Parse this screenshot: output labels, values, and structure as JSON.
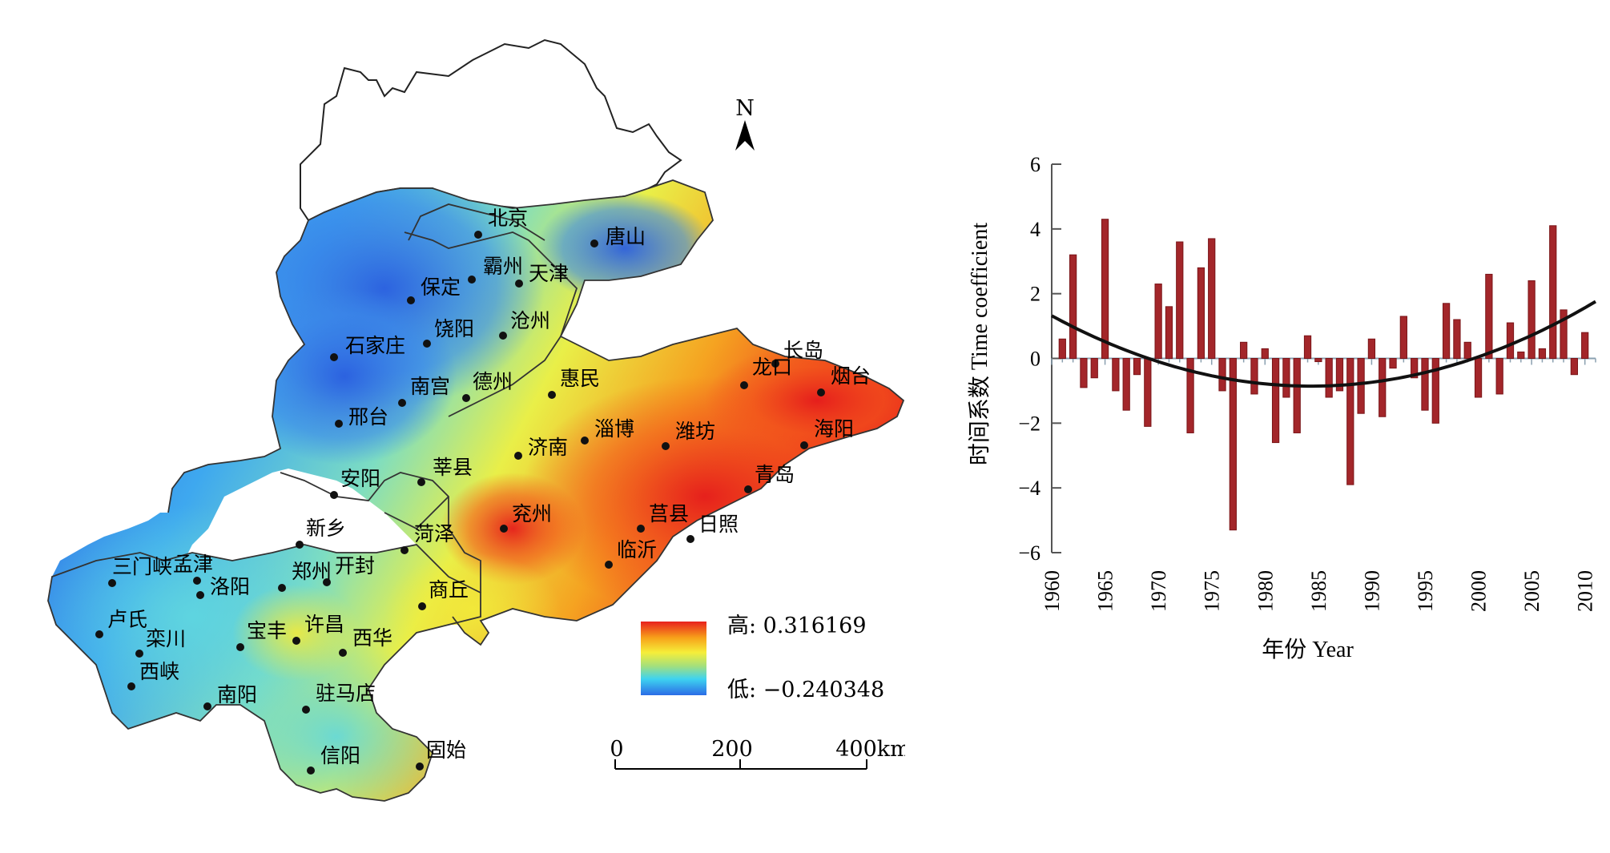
{
  "map": {
    "north_label": "N",
    "legend": {
      "high_label": "高: 0.316169",
      "low_label": "低: −0.240348",
      "colors": [
        "#e8201c",
        "#f7a11a",
        "#f6ee3a",
        "#a6e07a",
        "#3ed3f0",
        "#2b6ce6"
      ]
    },
    "scale_bar": {
      "ticks": [
        "0",
        "200",
        "400km"
      ]
    },
    "cities": [
      {
        "name": "北京",
        "value": -0.22
      },
      {
        "name": "唐山",
        "value": -0.18
      },
      {
        "name": "霸州",
        "value": -0.2
      },
      {
        "name": "天津",
        "value": -0.15
      },
      {
        "name": "保定",
        "value": -0.21
      },
      {
        "name": "饶阳",
        "value": -0.18
      },
      {
        "name": "沧州",
        "value": -0.12
      },
      {
        "name": "石家庄",
        "value": -0.24
      },
      {
        "name": "南宫",
        "value": -0.1
      },
      {
        "name": "德州",
        "value": -0.05
      },
      {
        "name": "惠民",
        "value": 0.05
      },
      {
        "name": "邢台",
        "value": -0.17
      },
      {
        "name": "济南",
        "value": 0.1
      },
      {
        "name": "淄博",
        "value": 0.17
      },
      {
        "name": "潍坊",
        "value": 0.25
      },
      {
        "name": "长岛",
        "value": 0.2
      },
      {
        "name": "龙口",
        "value": 0.22
      },
      {
        "name": "烟台",
        "value": 0.25
      },
      {
        "name": "海阳",
        "value": 0.3
      },
      {
        "name": "青岛",
        "value": 0.28
      },
      {
        "name": "莘县",
        "value": -0.02
      },
      {
        "name": "安阳",
        "value": -0.08
      },
      {
        "name": "兖州",
        "value": 0.22
      },
      {
        "name": "莒县",
        "value": 0.3
      },
      {
        "name": "日照",
        "value": 0.28
      },
      {
        "name": "菏泽",
        "value": 0.1
      },
      {
        "name": "临沂",
        "value": 0.29
      },
      {
        "name": "新乡",
        "value": -0.02
      },
      {
        "name": "三门峡",
        "value": -0.06
      },
      {
        "name": "孟津",
        "value": -0.05
      },
      {
        "name": "洛阳",
        "value": -0.1
      },
      {
        "name": "郑州",
        "value": -0.02
      },
      {
        "name": "开封",
        "value": 0.02
      },
      {
        "name": "商丘",
        "value": 0.1
      },
      {
        "name": "卢氏",
        "value": -0.06
      },
      {
        "name": "栾川",
        "value": 0.05
      },
      {
        "name": "宝丰",
        "value": 0.02
      },
      {
        "name": "许昌",
        "value": 0.08
      },
      {
        "name": "西华",
        "value": 0.06
      },
      {
        "name": "西峡",
        "value": -0.12
      },
      {
        "name": "南阳",
        "value": -0.02
      },
      {
        "name": "驻马店",
        "value": 0.02
      },
      {
        "name": "信阳",
        "value": 0.0
      },
      {
        "name": "固始",
        "value": 0.03
      }
    ]
  },
  "chart_data": {
    "type": "bar",
    "xlabel": "年份 Year",
    "ylabel": "时间系数 Time coefficient",
    "ylim": [
      -6,
      6
    ],
    "yticks": [
      -6,
      -4,
      -2,
      0,
      2,
      4,
      6
    ],
    "xticks": [
      1960,
      1965,
      1970,
      1975,
      1980,
      1985,
      1990,
      1995,
      2000,
      2005,
      2010
    ],
    "xlim": [
      1960,
      2011
    ],
    "bar_color": "#a3262a",
    "trend_color": "#111111",
    "years": [
      1961,
      1962,
      1963,
      1964,
      1965,
      1966,
      1967,
      1968,
      1969,
      1970,
      1971,
      1972,
      1973,
      1974,
      1975,
      1976,
      1977,
      1978,
      1979,
      1980,
      1981,
      1982,
      1983,
      1984,
      1985,
      1986,
      1987,
      1988,
      1989,
      1990,
      1991,
      1992,
      1993,
      1994,
      1995,
      1996,
      1997,
      1998,
      1999,
      2000,
      2001,
      2002,
      2003,
      2004,
      2005,
      2006,
      2007,
      2008,
      2009,
      2010
    ],
    "values": [
      0.6,
      3.2,
      -0.9,
      -0.6,
      4.3,
      -1.0,
      -1.6,
      -0.5,
      -2.1,
      2.3,
      1.6,
      3.6,
      -2.3,
      2.8,
      3.7,
      -1.0,
      -5.3,
      0.5,
      -1.1,
      0.3,
      -2.6,
      -1.2,
      -2.3,
      0.7,
      -0.1,
      -1.2,
      -1.0,
      -3.9,
      -1.7,
      0.6,
      -1.8,
      -0.3,
      1.3,
      -0.6,
      -1.6,
      -2.0,
      1.7,
      1.2,
      0.5,
      -1.2,
      2.6,
      -1.1,
      1.1,
      0.2,
      2.4,
      0.3,
      4.1,
      1.5,
      -0.5,
      0.8
    ],
    "trend": {
      "type": "quadratic",
      "points": [
        [
          1960,
          1.35
        ],
        [
          1970,
          -0.2
        ],
        [
          1983,
          -0.75
        ],
        [
          1995,
          -0.4
        ],
        [
          2005,
          0.55
        ],
        [
          2011,
          1.85
        ]
      ]
    }
  }
}
